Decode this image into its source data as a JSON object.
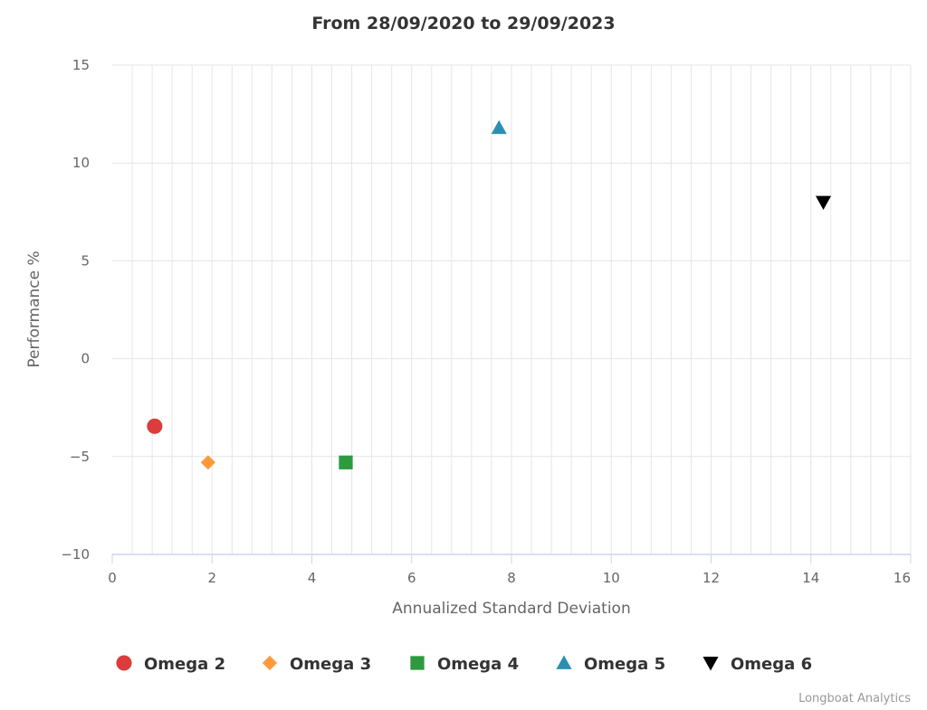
{
  "chart_data": {
    "type": "scatter",
    "title": "From 28/09/2020 to 29/09/2023",
    "xlabel": "Annualized Standard Deviation",
    "ylabel": "Performance %",
    "xlim": [
      0,
      16
    ],
    "ylim": [
      -10,
      15
    ],
    "x_ticks": [
      0,
      2,
      4,
      6,
      8,
      10,
      12,
      14,
      16
    ],
    "y_ticks": [
      -10,
      -5,
      0,
      5,
      10,
      15
    ],
    "grid": true,
    "legend_position": "bottom",
    "series": [
      {
        "name": "Omega 2",
        "marker": "circle",
        "color": "#dc3c3c",
        "x": 0.85,
        "y": -3.45
      },
      {
        "name": "Omega 3",
        "marker": "diamond",
        "color": "#ff9a3c",
        "x": 1.92,
        "y": -5.3
      },
      {
        "name": "Omega 4",
        "marker": "square",
        "color": "#2e9a40",
        "x": 4.68,
        "y": -5.3
      },
      {
        "name": "Omega 5",
        "marker": "triangle",
        "color": "#2c8fb2",
        "x": 7.75,
        "y": 11.8
      },
      {
        "name": "Omega 6",
        "marker": "triangle-down",
        "color": "#000000",
        "x": 14.25,
        "y": 8.0
      }
    ]
  },
  "credits": "Longboat Analytics"
}
